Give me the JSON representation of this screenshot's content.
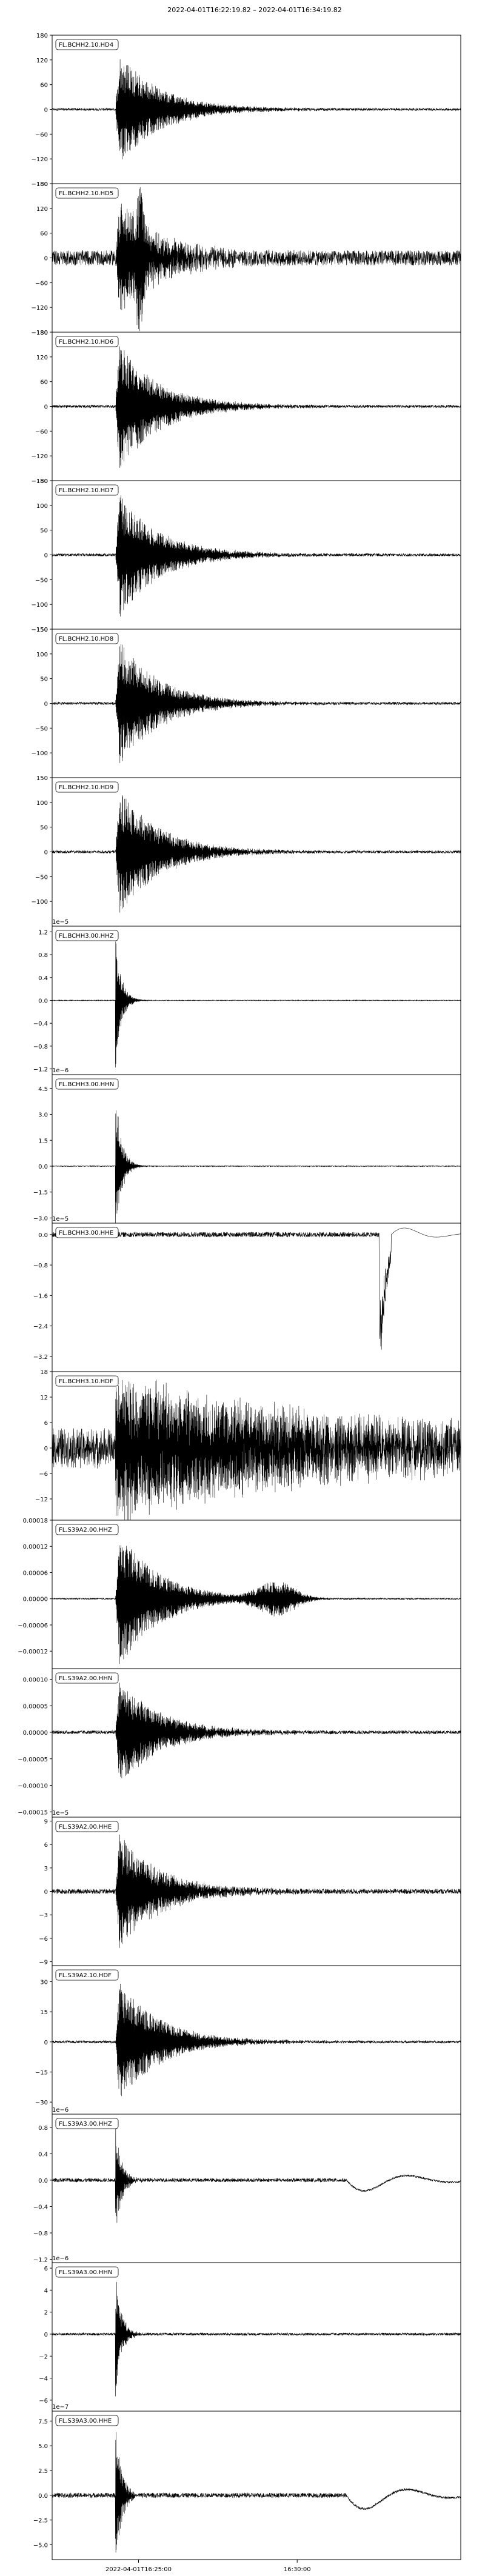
{
  "figure": {
    "title": "2022-04-01T16:22:19.82  –  2022-04-01T16:34:19.82",
    "x_tick_labels": [
      "2022-04-01T16:25:00",
      "16:30:00"
    ]
  },
  "chart_data": [
    {
      "type": "line",
      "label": "FL.BCHH2.10.HD4",
      "offset": "",
      "yticks": [
        -180,
        -120,
        -60,
        0,
        60,
        120,
        180
      ],
      "ylim": [
        -180,
        180
      ],
      "waveform": {
        "env": "burst",
        "amp": 150,
        "noise": 0.02
      }
    },
    {
      "type": "line",
      "label": "FL.BCHH2.10.HD5",
      "offset": "",
      "yticks": [
        -180,
        -120,
        -60,
        0,
        60,
        120,
        180
      ],
      "ylim": [
        -180,
        180
      ],
      "waveform": {
        "env": "burst2",
        "amp": 150,
        "noise": 0.12
      }
    },
    {
      "type": "line",
      "label": "FL.BCHH2.10.HD6",
      "offset": "",
      "yticks": [
        -180,
        -120,
        -60,
        0,
        60,
        120,
        180
      ],
      "ylim": [
        -180,
        180
      ],
      "waveform": {
        "env": "burst",
        "amp": 170,
        "noise": 0.02
      }
    },
    {
      "type": "line",
      "label": "FL.BCHH2.10.HD7",
      "offset": "",
      "yticks": [
        -150,
        -100,
        -50,
        0,
        50,
        100,
        150
      ],
      "ylim": [
        -150,
        150
      ],
      "waveform": {
        "env": "burst",
        "amp": 140,
        "noise": 0.02
      }
    },
    {
      "type": "line",
      "label": "FL.BCHH2.10.HD8",
      "offset": "",
      "yticks": [
        -100,
        -50,
        0,
        50,
        100,
        150
      ],
      "ylim": [
        -150,
        150
      ],
      "waveform": {
        "env": "burst",
        "amp": 140,
        "noise": 0.02
      }
    },
    {
      "type": "line",
      "label": "FL.BCHH2.10.HD9",
      "offset": "",
      "yticks": [
        -100,
        -50,
        0,
        50,
        100,
        150
      ],
      "ylim": [
        -150,
        150
      ],
      "waveform": {
        "env": "burst",
        "amp": 140,
        "noise": 0.02
      }
    },
    {
      "type": "line",
      "label": "FL.BCHH3.00.HHZ",
      "offset": "1e−5",
      "yticks": [
        -1.2,
        -0.8,
        -0.4,
        0.0,
        0.4,
        0.8,
        1.2
      ],
      "ylim": [
        -1.3,
        1.3
      ],
      "waveform": {
        "env": "spike",
        "amp": 1.25,
        "noise": 0.005
      }
    },
    {
      "type": "line",
      "label": "FL.BCHH3.00.HHN",
      "offset": "1e−6",
      "yticks": [
        -3.0,
        -1.5,
        0.0,
        1.5,
        3.0,
        4.5
      ],
      "ylim": [
        -3.3,
        5.3
      ],
      "waveform": {
        "env": "spike",
        "amp": 4.8,
        "noise": 0.005
      }
    },
    {
      "type": "line",
      "label": "FL.BCHH3.00.HHE",
      "offset": "1e−5",
      "yticks": [
        -3.2,
        -2.4,
        -1.6,
        -0.8,
        0.0
      ],
      "ylim": [
        -3.6,
        0.3
      ],
      "waveform": {
        "env": "late-drop",
        "amp": 3.3,
        "noise": 0.02
      }
    },
    {
      "type": "line",
      "label": "FL.BCHH3.10.HDF",
      "offset": "",
      "yticks": [
        -12,
        -6,
        0,
        6,
        12,
        18
      ],
      "ylim": [
        -17,
        18
      ],
      "waveform": {
        "env": "long",
        "amp": 16,
        "noise": 0.25
      }
    },
    {
      "type": "line",
      "label": "FL.S39A2.00.HHZ",
      "offset": "",
      "yticks": [
        -0.00012,
        -6e-05,
        0.0,
        6e-05,
        0.00012,
        0.00018
      ],
      "ylim": [
        -0.00016,
        0.00018
      ],
      "waveform": {
        "env": "burst-tail",
        "amp": 0.00017,
        "noise": 0.01
      }
    },
    {
      "type": "line",
      "label": "FL.S39A2.00.HHN",
      "offset": "",
      "yticks": [
        -0.00015,
        -0.0001,
        -5e-05,
        0.0,
        5e-05,
        0.0001
      ],
      "ylim": [
        -0.00016,
        0.00012
      ],
      "waveform": {
        "env": "burst",
        "amp": 0.00011,
        "noise": 0.03
      }
    },
    {
      "type": "line",
      "label": "FL.S39A2.00.HHE",
      "offset": "1e−5",
      "yticks": [
        -9,
        -6,
        -3,
        0,
        3,
        6,
        9
      ],
      "ylim": [
        -9.5,
        9.5
      ],
      "waveform": {
        "env": "burst",
        "amp": 8,
        "noise": 0.04
      }
    },
    {
      "type": "line",
      "label": "FL.S39A2.10.HDF",
      "offset": "",
      "yticks": [
        -30,
        -15,
        0,
        15,
        30
      ],
      "ylim": [
        -36,
        38
      ],
      "waveform": {
        "env": "burst",
        "amp": 33,
        "noise": 0.02
      }
    },
    {
      "type": "line",
      "label": "FL.S39A3.00.HHZ",
      "offset": "1e−6",
      "yticks": [
        -1.2,
        -0.8,
        -0.4,
        0.0,
        0.4,
        0.8
      ],
      "ylim": [
        -1.25,
        1.0
      ],
      "waveform": {
        "env": "spike-end",
        "amp": 0.95,
        "noise": 0.03
      }
    },
    {
      "type": "line",
      "label": "FL.S39A3.00.HHN",
      "offset": "1e−6",
      "yticks": [
        -6,
        -4,
        -2,
        0,
        2,
        4,
        6
      ],
      "ylim": [
        -7,
        6.5
      ],
      "waveform": {
        "env": "spike",
        "amp": 6,
        "noise": 0.02
      }
    },
    {
      "type": "line",
      "label": "FL.S39A3.00.HHE",
      "offset": "1e−7",
      "yticks": [
        -5.0,
        -2.5,
        0.0,
        2.5,
        5.0,
        7.5
      ],
      "ylim": [
        -6.5,
        8.5
      ],
      "waveform": {
        "env": "spike-end",
        "amp": 8,
        "noise": 0.03
      }
    }
  ]
}
